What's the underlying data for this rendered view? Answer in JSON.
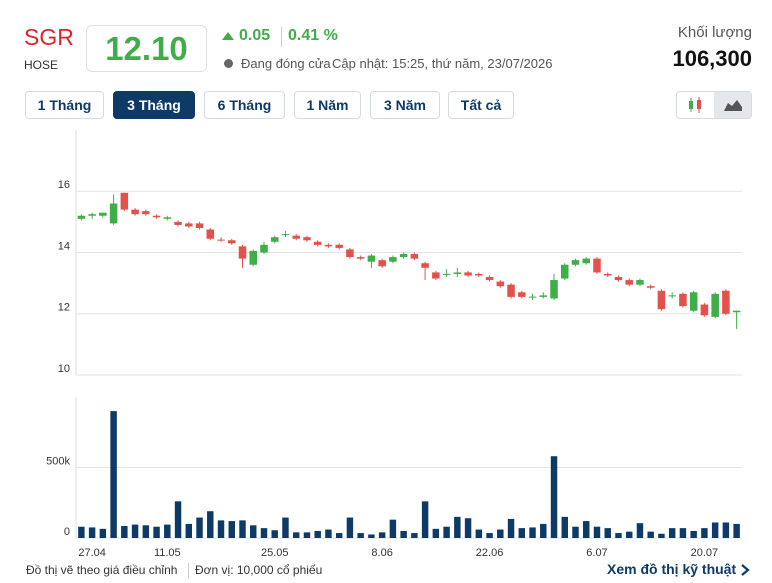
{
  "header": {
    "symbol": "SGR",
    "exchange": "HOSE",
    "price": "12.10",
    "change": "0.05",
    "change_pct": "0.41 %",
    "status": "Đang đóng cửa",
    "updated": "Cập nhật: 15:25, thứ năm, 23/07/2026",
    "volume_label": "Khối lượng",
    "volume": "106,300"
  },
  "tabs": {
    "items": [
      "1 Tháng",
      "3 Tháng",
      "6 Tháng",
      "1 Năm",
      "3 Năm",
      "Tất cả"
    ],
    "active": 1
  },
  "chart_data": [
    {
      "type": "candlestick",
      "up_color": "#3fae49",
      "down_color": "#e2514c",
      "grid": true,
      "ylim": [
        10,
        18
      ],
      "yticks": [
        10,
        12,
        14,
        16
      ],
      "open": [
        15.1,
        15.2,
        15.2,
        14.95,
        15.95,
        15.4,
        15.35,
        15.2,
        15.1,
        15.0,
        14.95,
        14.95,
        14.75,
        14.42,
        14.4,
        14.2,
        13.6,
        14.0,
        14.35,
        14.58,
        14.55,
        14.5,
        14.35,
        14.25,
        14.25,
        14.1,
        13.85,
        13.7,
        13.75,
        13.7,
        13.85,
        13.95,
        13.65,
        13.35,
        13.28,
        13.3,
        13.35,
        13.3,
        13.2,
        13.05,
        12.95,
        12.7,
        12.54,
        12.55,
        12.5,
        13.15,
        13.6,
        13.65,
        13.8,
        13.3,
        13.2,
        13.1,
        12.95,
        12.9,
        12.75,
        12.58,
        12.65,
        12.1,
        12.3,
        11.9,
        12.75,
        12.05
      ],
      "high": [
        15.25,
        15.3,
        15.3,
        15.9,
        15.95,
        15.45,
        15.4,
        15.25,
        15.2,
        15.05,
        15.0,
        15.0,
        14.8,
        14.5,
        14.45,
        14.25,
        14.1,
        14.35,
        14.55,
        14.7,
        14.6,
        14.55,
        14.4,
        14.3,
        14.3,
        14.15,
        13.9,
        13.95,
        13.8,
        13.9,
        14.0,
        14.0,
        13.7,
        13.4,
        13.45,
        13.5,
        13.4,
        13.35,
        13.25,
        13.1,
        13.0,
        12.75,
        12.65,
        12.7,
        13.3,
        13.65,
        13.8,
        13.85,
        13.85,
        13.35,
        13.25,
        13.15,
        13.15,
        12.95,
        12.8,
        12.7,
        12.7,
        12.75,
        12.35,
        12.7,
        12.8,
        12.1
      ],
      "low": [
        15.05,
        15.1,
        15.15,
        14.9,
        15.35,
        15.2,
        15.2,
        15.1,
        15.05,
        14.85,
        14.8,
        14.75,
        14.4,
        14.35,
        14.25,
        13.5,
        13.55,
        13.95,
        14.3,
        14.5,
        14.4,
        14.35,
        14.2,
        14.15,
        14.1,
        13.8,
        13.75,
        13.5,
        13.5,
        13.65,
        13.8,
        13.75,
        13.1,
        13.1,
        13.2,
        13.2,
        13.2,
        13.2,
        13.05,
        12.85,
        12.5,
        12.5,
        12.45,
        12.5,
        12.45,
        13.1,
        13.55,
        13.6,
        13.3,
        13.2,
        13.05,
        12.9,
        12.9,
        12.8,
        12.1,
        12.5,
        12.2,
        12.05,
        11.9,
        11.85,
        11.95,
        11.5
      ],
      "close": [
        15.2,
        15.25,
        15.3,
        15.6,
        15.4,
        15.25,
        15.25,
        15.15,
        15.15,
        14.9,
        14.85,
        14.8,
        14.45,
        14.41,
        14.3,
        13.8,
        14.05,
        14.25,
        14.5,
        14.6,
        14.45,
        14.4,
        14.25,
        14.2,
        14.15,
        13.85,
        13.8,
        13.9,
        13.55,
        13.85,
        13.95,
        13.8,
        13.5,
        13.15,
        13.3,
        13.35,
        13.25,
        13.25,
        13.1,
        12.9,
        12.55,
        12.55,
        12.56,
        12.6,
        13.1,
        13.6,
        13.75,
        13.8,
        13.35,
        13.25,
        13.1,
        12.95,
        13.1,
        12.85,
        12.15,
        12.6,
        12.25,
        12.7,
        11.95,
        12.65,
        12.0,
        12.1
      ]
    },
    {
      "type": "bar",
      "color": "#0d3a66",
      "grid": true,
      "ylim": [
        0,
        1000000
      ],
      "yticks": [
        0,
        {
          "value": 500000,
          "label": "500k"
        }
      ],
      "categories": [
        null,
        "27.04",
        null,
        null,
        null,
        null,
        null,
        null,
        "11.05",
        null,
        null,
        null,
        null,
        null,
        null,
        null,
        null,
        null,
        "25.05",
        null,
        null,
        null,
        null,
        null,
        null,
        null,
        null,
        null,
        "8.06",
        null,
        null,
        null,
        null,
        null,
        null,
        null,
        null,
        null,
        "22.06",
        null,
        null,
        null,
        null,
        null,
        null,
        null,
        null,
        null,
        "6.07",
        null,
        null,
        null,
        null,
        null,
        null,
        null,
        null,
        null,
        "20.07",
        null,
        null,
        null
      ],
      "values": [
        80000,
        75000,
        65000,
        900000,
        85000,
        95000,
        90000,
        80000,
        95000,
        260000,
        100000,
        145000,
        190000,
        125000,
        120000,
        125000,
        90000,
        70000,
        55000,
        145000,
        40000,
        40000,
        50000,
        60000,
        35000,
        145000,
        35000,
        25000,
        40000,
        130000,
        50000,
        35000,
        260000,
        65000,
        80000,
        150000,
        140000,
        60000,
        35000,
        60000,
        135000,
        70000,
        75000,
        100000,
        580000,
        150000,
        80000,
        120000,
        80000,
        70000,
        35000,
        45000,
        105000,
        45000,
        30000,
        70000,
        70000,
        50000,
        70000,
        110000,
        110000,
        100000
      ]
    }
  ],
  "footer": {
    "note": "Đồ thị vẽ theo giá điều chỉnh",
    "unit": "Đơn vị: 10,000 cổ phiếu",
    "link": "Xem đồ thị kỹ thuật"
  }
}
